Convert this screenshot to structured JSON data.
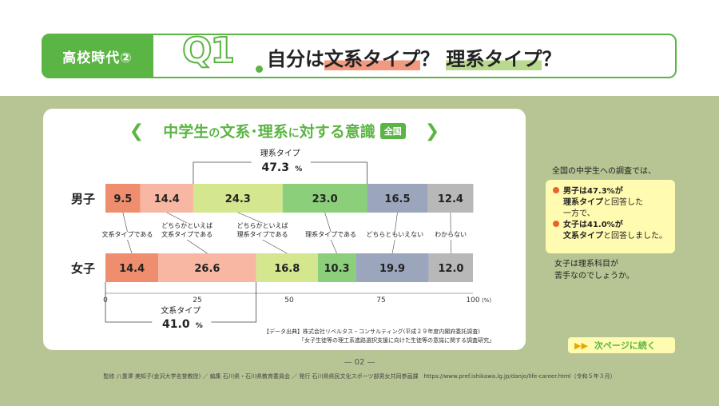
{
  "header": {
    "tab_label": "高校時代②",
    "q_label": "Q1",
    "question_part1": "自分は",
    "question_highlight1": "文系タイプ",
    "question_part2": "？",
    "question_highlight2": "理系タイプ",
    "question_part3": "？"
  },
  "chart_title": {
    "part1": "中学生",
    "part2": "の",
    "part3": "文系･理系",
    "part4": "に",
    "part5": "対する意識",
    "badge": "全国",
    "left_bracket": "❮",
    "right_bracket": "❯"
  },
  "colors": {
    "green": "#5bb544",
    "olive": "#b6c593",
    "seg1": "#ef8e6e",
    "seg2": "#f7b7a3",
    "seg3": "#d4e68e",
    "seg4": "#8ccf7a",
    "seg5": "#9ba6bd",
    "seg6": "#b8b8b8"
  },
  "chart_data": {
    "type": "bar",
    "orientation": "horizontal",
    "stacked": true,
    "categories": [
      "男子",
      "女子"
    ],
    "series": [
      {
        "name": "文系タイプである",
        "values": [
          9.5,
          14.4
        ]
      },
      {
        "name": "どちらかといえば文系タイプである",
        "values": [
          14.4,
          26.6
        ]
      },
      {
        "name": "どちらかといえば理系タイプである",
        "values": [
          24.3,
          16.8
        ]
      },
      {
        "name": "理系タイプである",
        "values": [
          23.0,
          10.3
        ]
      },
      {
        "name": "どちらともいえない",
        "values": [
          16.5,
          19.9
        ]
      },
      {
        "name": "わからない",
        "values": [
          12.4,
          12.0
        ]
      }
    ],
    "xlim": [
      0,
      100
    ],
    "x_ticks": [
      "0",
      "25",
      "50",
      "75",
      "100"
    ],
    "x_unit": "(%)",
    "series_labels": [
      [
        "文系タイプである"
      ],
      [
        "どちらかといえば",
        "文系タイプである"
      ],
      [
        "どちらかといえば",
        "理系タイプである"
      ],
      [
        "理系タイプである"
      ],
      [
        "どちらともいえない"
      ],
      [
        "わからない"
      ]
    ],
    "annotations": [
      {
        "label": "理系タイプ",
        "value": "47.3",
        "unit": "%",
        "category": "男子"
      },
      {
        "label": "文系タイプ",
        "value": "41.0",
        "unit": "%",
        "category": "女子"
      }
    ]
  },
  "source": {
    "line1": "【データ出典】株式会社リベルタス・コンサルティング(平成２９年度内閣府委託調査)",
    "line2": "「女子生徒等の理工系進路選択支援に向けた生徒等の意識に関する調査研究」"
  },
  "sidebar": {
    "intro": "全国の中学生への調査では、",
    "item1_bold": "男子は47.3%が",
    "item1_bold2": "理系タイプ",
    "item1_rest": "と回答した",
    "middle": "一方で、",
    "item2_bold": "女子は41.0%が",
    "item2_bold2": "文系タイプ",
    "item2_rest": "と回答しました。",
    "outro_line1": "女子は理系科目が",
    "outro_line2": "苦手なのでしょうか。"
  },
  "next_button": {
    "arrows": "▶▶",
    "label": "次ページに続く"
  },
  "page_number": "— 02 —",
  "footer": {
    "text": "監修 八重澤 美知子(金沢大学名誉教授) ／ 編集 石川県・石川県教育委員会 ／ 発行 石川県県民文化スポーツ部男女共同参画課　https://www.pref.ishikawa.lg.jp/danjo/life-career.html（令和５年３月）"
  }
}
